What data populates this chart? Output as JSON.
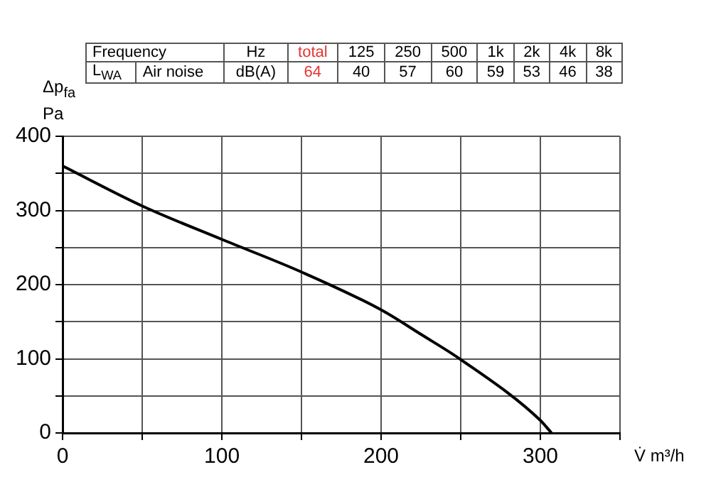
{
  "chart_data": {
    "type": "line",
    "x": [
      0,
      50,
      100,
      150,
      200,
      225,
      250,
      300,
      307
    ],
    "series": [
      {
        "color": "#000000",
        "values": [
          360,
          306,
          261,
          217,
          166,
          133,
          99,
          17,
          0
        ]
      }
    ],
    "xlabel": "V̇ m³/h",
    "ylabel": "Δp$_{fa}$ Pa",
    "xlim": [
      0,
      350
    ],
    "xticks": [
      0,
      {
        "value": 50,
        "label": null
      },
      100,
      {
        "value": 150,
        "label": null
      },
      200,
      {
        "value": 250,
        "label": null
      },
      300,
      {
        "value": 350,
        "label": null
      }
    ],
    "ylim": [
      0,
      400
    ],
    "yticks": [
      0,
      {
        "value": 50,
        "label": null
      },
      100,
      {
        "value": 150,
        "label": null
      },
      200,
      {
        "value": 250,
        "label": null
      },
      300,
      {
        "value": 350,
        "label": null
      },
      400
    ],
    "grid": true,
    "legend": false,
    "marker": "none",
    "line_style": "solid",
    "annotations": [
      "Frequency",
      "Hz",
      "total",
      "125",
      "250",
      "500",
      "1k",
      "2k",
      "4k",
      "8k",
      "L$_{WA}$",
      "Air noise",
      "dB(A)",
      "64",
      "40",
      "57",
      "60",
      "59",
      "53",
      "46",
      "38"
    ]
  }
}
